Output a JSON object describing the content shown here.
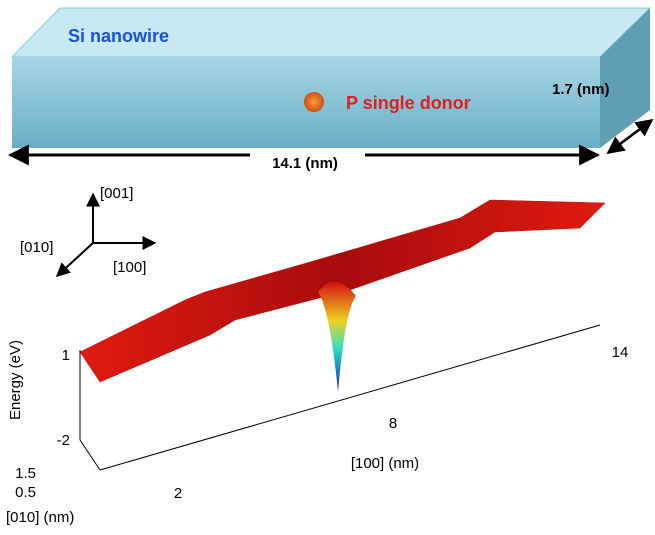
{
  "wire": {
    "title": "Si nanowire",
    "donor": "P single donor",
    "length": "14.1 (nm)",
    "width": "1.7 (nm)"
  },
  "axes_key": {
    "z": "[001]",
    "y": "[010]",
    "x": "[100]"
  },
  "plot": {
    "z_label": "Energy (eV)",
    "z_ticks": [
      1,
      -2
    ],
    "y_label": "[010] (nm)",
    "y_ticks": [
      1.5,
      0.5
    ],
    "x_label": "[100] (nm)",
    "x_ticks": [
      2,
      8,
      14
    ]
  }
}
